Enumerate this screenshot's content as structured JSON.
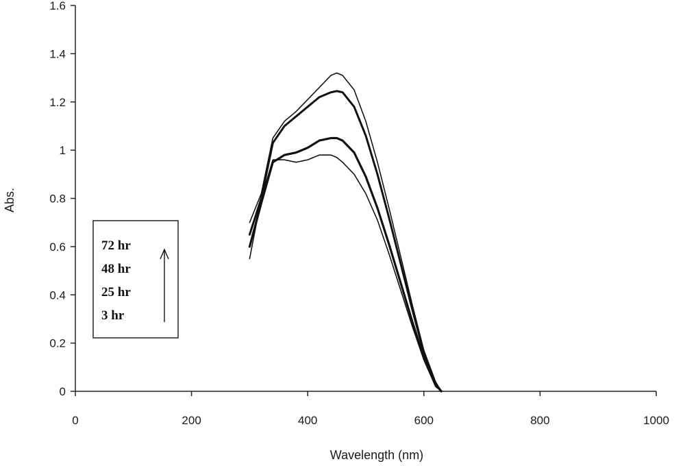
{
  "chart_data": {
    "type": "line",
    "title": "",
    "xlabel": "Wavelength (nm)",
    "ylabel": "Abs.",
    "xlim": [
      0,
      1000
    ],
    "ylim": [
      0,
      1.6
    ],
    "xticks": [
      0,
      200,
      400,
      600,
      800,
      1000
    ],
    "xtick_labels": [
      "0",
      "200",
      "400",
      "600",
      "800",
      "1000"
    ],
    "yticks": [
      0,
      0.2,
      0.4,
      0.6,
      0.8,
      1.0,
      1.2,
      1.4,
      1.6
    ],
    "ytick_labels": [
      "0",
      "0.2",
      "0.4",
      "0.6",
      "0.8",
      "1",
      "1.2",
      "1.4",
      "1.6"
    ],
    "grid": false,
    "legend_position": "left",
    "legend_items": [
      "72 hr",
      "48 hr",
      "25 hr",
      "3 hr"
    ],
    "series": [
      {
        "name": "72 hr",
        "x": [
          300,
          320,
          340,
          360,
          380,
          400,
          420,
          440,
          450,
          460,
          480,
          500,
          520,
          540,
          560,
          580,
          600,
          620,
          630
        ],
        "y": [
          0.7,
          0.82,
          1.05,
          1.12,
          1.16,
          1.21,
          1.26,
          1.31,
          1.32,
          1.31,
          1.25,
          1.12,
          0.95,
          0.76,
          0.56,
          0.36,
          0.17,
          0.04,
          0.0
        ]
      },
      {
        "name": "48 hr",
        "x": [
          300,
          320,
          340,
          360,
          380,
          400,
          420,
          440,
          450,
          460,
          480,
          500,
          520,
          540,
          560,
          580,
          600,
          620,
          630
        ],
        "y": [
          0.65,
          0.8,
          1.03,
          1.1,
          1.14,
          1.18,
          1.22,
          1.24,
          1.245,
          1.24,
          1.18,
          1.06,
          0.9,
          0.72,
          0.53,
          0.34,
          0.16,
          0.03,
          0.0
        ]
      },
      {
        "name": "25 hr",
        "x": [
          300,
          320,
          340,
          360,
          380,
          400,
          420,
          440,
          450,
          460,
          480,
          500,
          520,
          540,
          560,
          580,
          600,
          620,
          630
        ],
        "y": [
          0.6,
          0.78,
          0.95,
          0.98,
          0.99,
          1.01,
          1.04,
          1.05,
          1.05,
          1.04,
          0.99,
          0.89,
          0.76,
          0.61,
          0.45,
          0.29,
          0.14,
          0.03,
          0.0
        ]
      },
      {
        "name": "3 hr",
        "x": [
          300,
          320,
          340,
          360,
          380,
          400,
          420,
          440,
          450,
          460,
          480,
          500,
          520,
          540,
          560,
          580,
          600,
          620,
          630
        ],
        "y": [
          0.55,
          0.8,
          0.96,
          0.96,
          0.95,
          0.96,
          0.98,
          0.98,
          0.97,
          0.95,
          0.9,
          0.82,
          0.71,
          0.57,
          0.42,
          0.27,
          0.13,
          0.02,
          0.0
        ]
      }
    ]
  }
}
